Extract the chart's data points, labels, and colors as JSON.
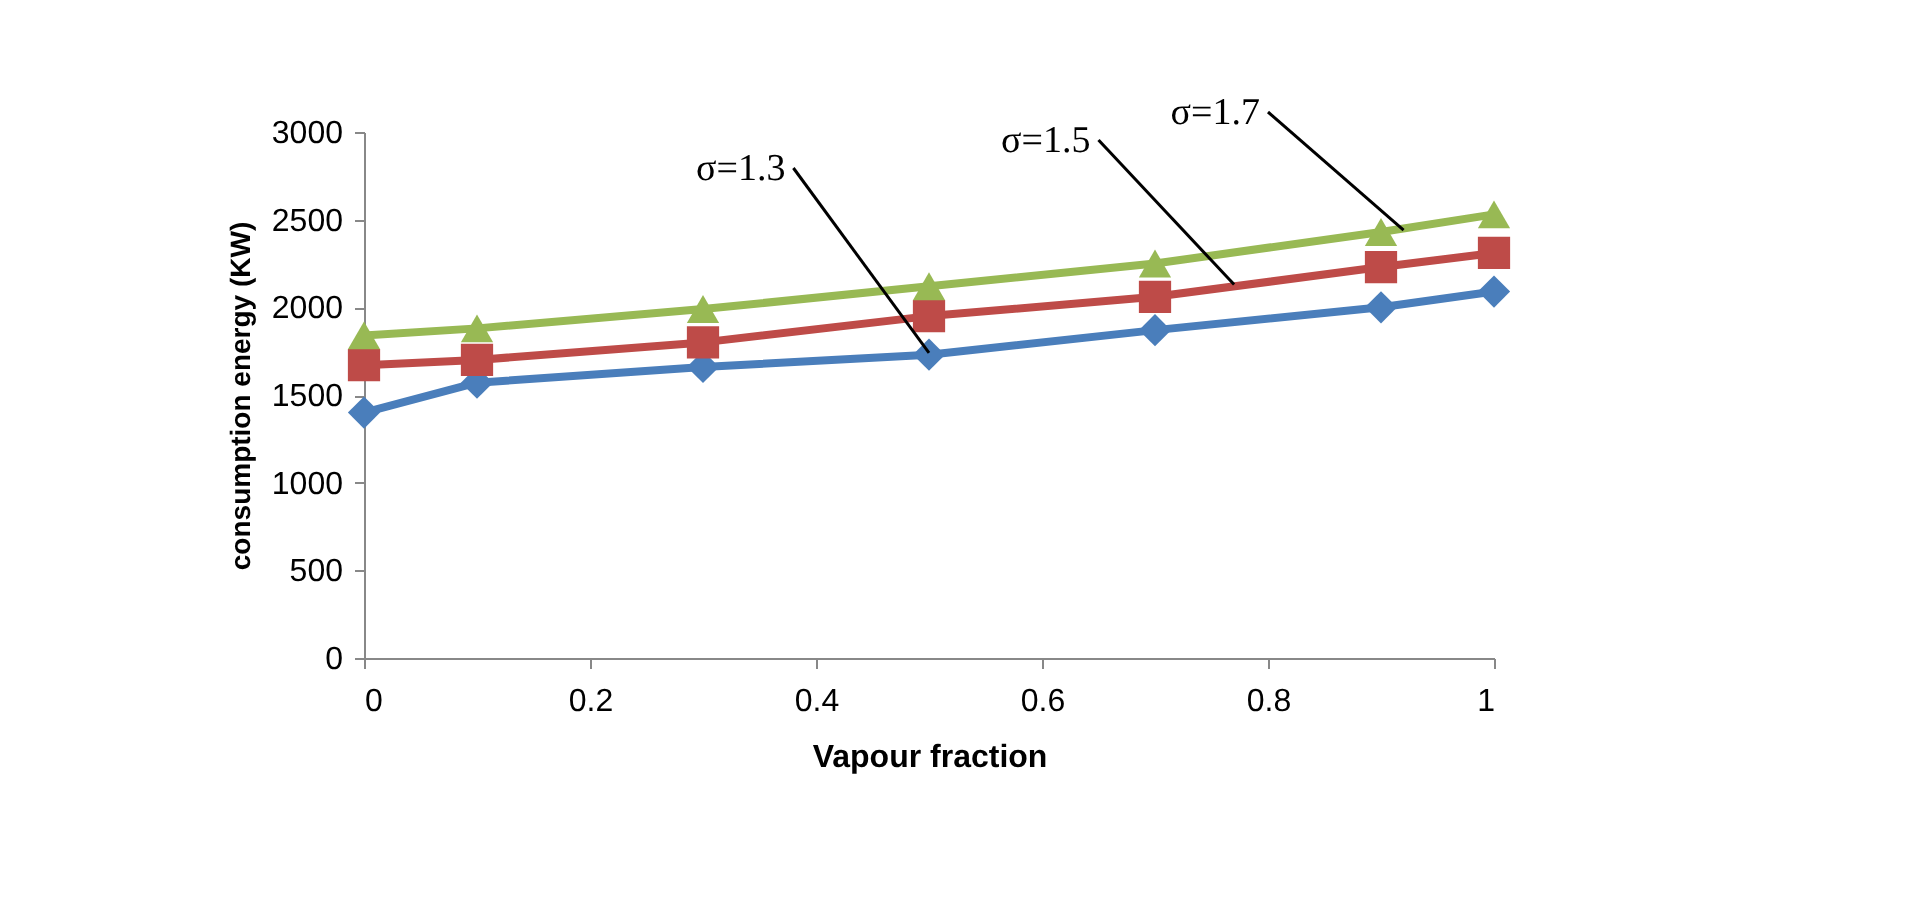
{
  "chart_data": {
    "type": "line",
    "xlabel": "Vapour fraction",
    "ylabel": "consumption energy (KW)",
    "x": [
      0,
      0.1,
      0.3,
      0.5,
      0.7,
      0.9,
      1
    ],
    "series": [
      {
        "color": "#4a7ebb",
        "marker": "diamond",
        "values": [
          1400,
          1570,
          1660,
          1730,
          1870,
          2000,
          2090
        ]
      },
      {
        "color": "#be4b48",
        "marker": "square",
        "values": [
          1670,
          1700,
          1800,
          1950,
          2060,
          2230,
          2310
        ]
      },
      {
        "color": "#98b954",
        "marker": "triangle",
        "values": [
          1840,
          1880,
          1990,
          2120,
          2250,
          2430,
          2530
        ]
      }
    ],
    "annotations": [
      {
        "text": "σ=1.3",
        "x": 0.5,
        "y": 1740
      },
      {
        "text": "σ=1.5",
        "x": 0.77,
        "y": 2130
      },
      {
        "text": "σ=1.7",
        "x": 0.92,
        "y": 2440
      }
    ],
    "xlim": [
      0,
      1
    ],
    "xticks": [
      0,
      0.2,
      0.4,
      0.6,
      0.8,
      1
    ],
    "ylim": [
      0,
      3000
    ],
    "yticks": [
      0,
      500,
      1000,
      1500,
      2000,
      2500,
      3000
    ],
    "grid": false,
    "line_style": "solid"
  }
}
